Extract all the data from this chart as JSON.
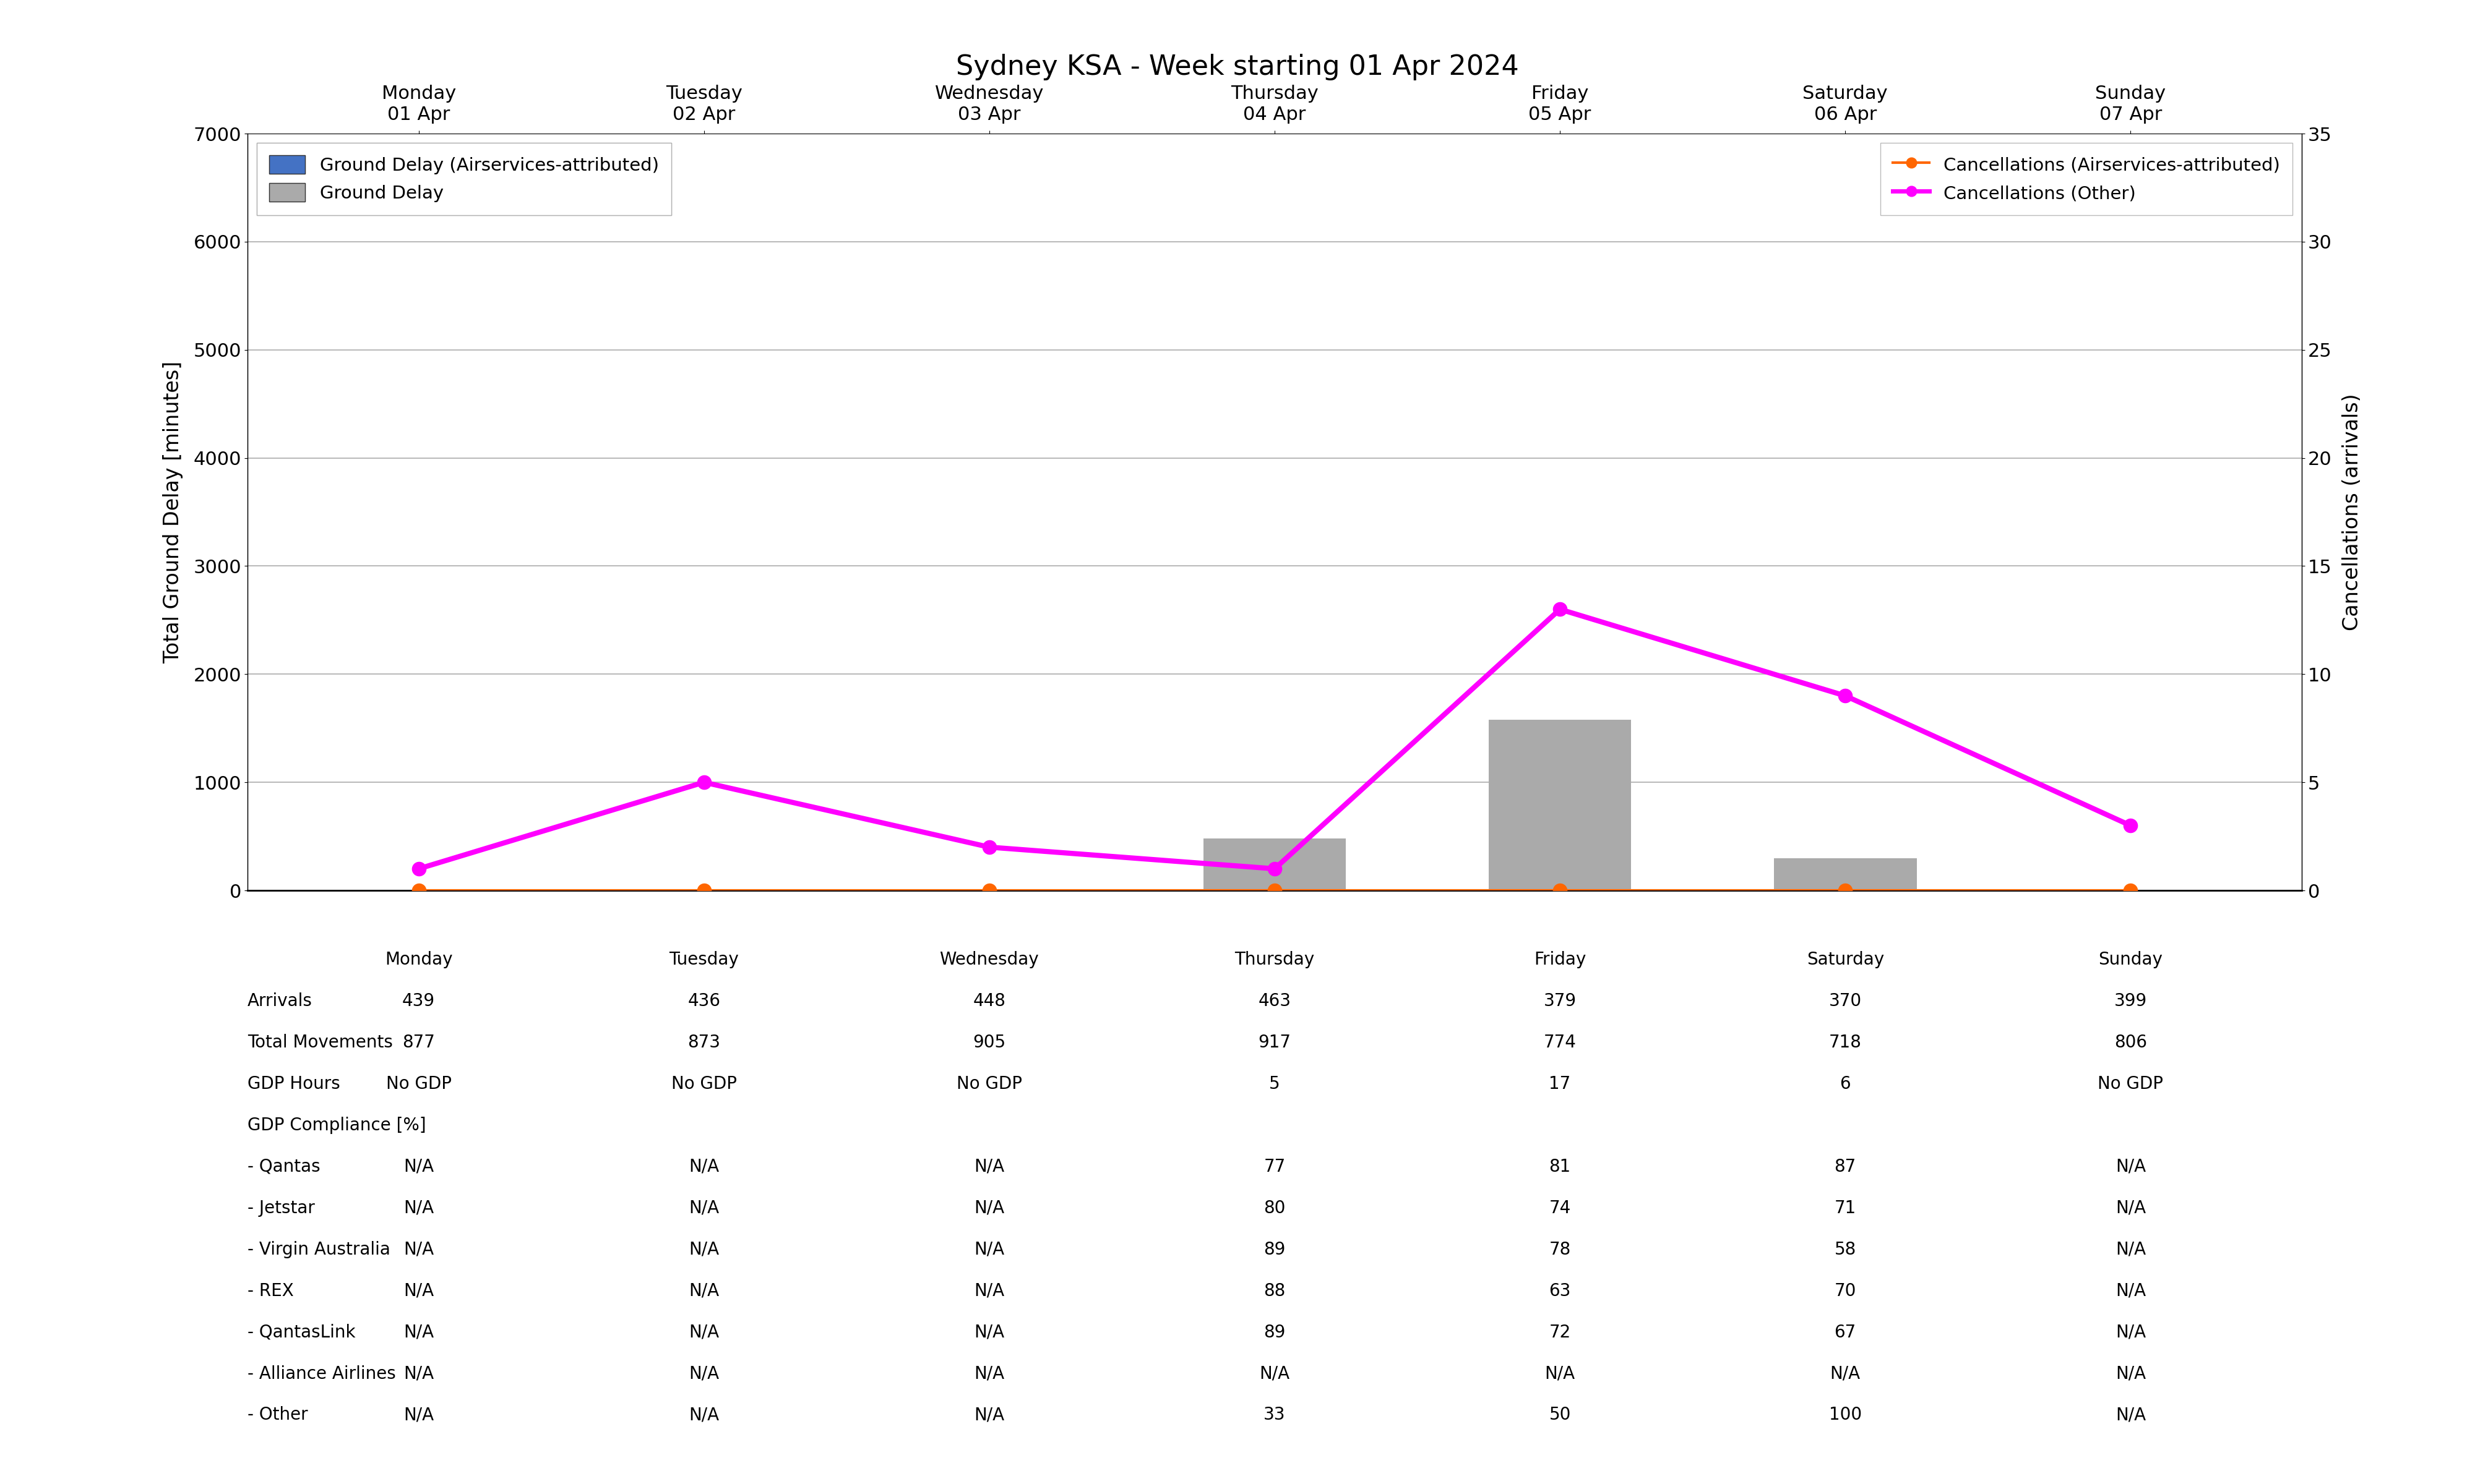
{
  "title": "Sydney KSA - Week starting 01 Apr 2024",
  "days": [
    "Monday\n01 Apr",
    "Tuesday\n02 Apr",
    "Wednesday\n03 Apr",
    "Thursday\n04 Apr",
    "Friday\n05 Apr",
    "Saturday\n06 Apr",
    "Sunday\n07 Apr"
  ],
  "x_positions": [
    0,
    1,
    2,
    3,
    4,
    5,
    6
  ],
  "ground_delay_airservices": [
    0,
    0,
    0,
    0,
    0,
    0,
    0
  ],
  "ground_delay": [
    0,
    0,
    0,
    480,
    1580,
    300,
    0
  ],
  "cancellations_airservices_values": [
    0,
    0,
    0,
    0,
    0,
    0,
    0
  ],
  "cancellations_other_values": [
    1,
    5,
    2,
    1,
    13,
    9,
    3
  ],
  "ylim_left": [
    0,
    7000
  ],
  "ylim_right": [
    0,
    35
  ],
  "yticks_left": [
    0,
    1000,
    2000,
    3000,
    4000,
    5000,
    6000,
    7000
  ],
  "yticks_right": [
    0,
    5,
    10,
    15,
    20,
    25,
    30,
    35
  ],
  "ylabel_left": "Total Ground Delay [minutes]",
  "ylabel_right": "Cancellations (arrivals)",
  "bar_width": 0.5,
  "bar_color_airservices": "#4472C4",
  "bar_color_ground_delay": "#AAAAAA",
  "line_color_cancellations_airservices": "#FF6600",
  "line_color_cancellations_other": "#FF00FF",
  "legend_labels": [
    "Ground Delay (Airservices-attributed)",
    "Ground Delay",
    "Cancellations (Airservices-attributed)",
    "Cancellations (Other)"
  ],
  "table_rows": [
    [
      "Arrivals",
      "439",
      "436",
      "448",
      "463",
      "379",
      "370",
      "399"
    ],
    [
      "Total Movements",
      "877",
      "873",
      "905",
      "917",
      "774",
      "718",
      "806"
    ],
    [
      "GDP Hours",
      "No GDP",
      "No GDP",
      "No GDP",
      "5",
      "17",
      "6",
      "No GDP"
    ],
    [
      "GDP Compliance [%]",
      "",
      "",
      "",
      "",
      "",
      "",
      ""
    ],
    [
      "- Qantas",
      "N/A",
      "N/A",
      "N/A",
      "77",
      "81",
      "87",
      "N/A"
    ],
    [
      "- Jetstar",
      "N/A",
      "N/A",
      "N/A",
      "80",
      "74",
      "71",
      "N/A"
    ],
    [
      "- Virgin Australia",
      "N/A",
      "N/A",
      "N/A",
      "89",
      "78",
      "58",
      "N/A"
    ],
    [
      "- REX",
      "N/A",
      "N/A",
      "N/A",
      "88",
      "63",
      "70",
      "N/A"
    ],
    [
      "- QantasLink",
      "N/A",
      "N/A",
      "N/A",
      "89",
      "72",
      "67",
      "N/A"
    ],
    [
      "- Alliance Airlines",
      "N/A",
      "N/A",
      "N/A",
      "N/A",
      "N/A",
      "N/A",
      "N/A"
    ],
    [
      "- Other",
      "N/A",
      "N/A",
      "N/A",
      "33",
      "50",
      "100",
      "N/A"
    ]
  ],
  "table_col_headers": [
    "Monday",
    "Tuesday",
    "Wednesday",
    "Thursday",
    "Friday",
    "Saturday",
    "Sunday"
  ],
  "background_color": "#FFFFFF",
  "grid_color": "#BBBBBB",
  "title_fontsize": 32,
  "label_fontsize": 24,
  "tick_fontsize": 22,
  "legend_fontsize": 21,
  "table_fontsize": 20,
  "table_header_fontsize": 20
}
